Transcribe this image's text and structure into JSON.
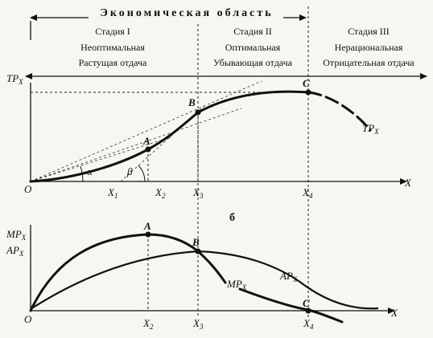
{
  "header": {
    "title": "Экономическая область"
  },
  "stages": [
    {
      "name": "Стадия I",
      "line1": "Неоптимальная",
      "line2": "Растущая отдача"
    },
    {
      "name": "Стадия II",
      "line1": "Оптимальная",
      "line2": "Убывающая отдача"
    },
    {
      "name": "Стадия III",
      "line1": "Нерациональная",
      "line2": "Отрицательная отдача"
    }
  ],
  "top_chart": {
    "y_axis": {
      "main": "TP",
      "sub": "X"
    },
    "x_axis": "X",
    "origin": "O",
    "curve_label": {
      "main": "TP",
      "sub": "X"
    },
    "points": [
      "A",
      "B",
      "C"
    ],
    "angles": [
      "α",
      "β"
    ],
    "x_ticks": [
      {
        "main": "X",
        "sub": "1"
      },
      {
        "main": "X",
        "sub": "2"
      },
      {
        "main": "X",
        "sub": "3"
      },
      {
        "main": "X",
        "sub": "4"
      }
    ]
  },
  "panel_label": "б",
  "bottom_chart": {
    "y_axis_lines": [
      {
        "main": "MP",
        "sub": "X"
      },
      {
        "main": "AP",
        "sub": "X"
      }
    ],
    "x_axis": "X",
    "origin": "O",
    "points": [
      "A",
      "B",
      "C"
    ],
    "mp_label": {
      "main": "MP",
      "sub": "X"
    },
    "ap_label": {
      "main": "AP",
      "sub": "X"
    },
    "x_ticks": [
      {
        "main": "X",
        "sub": "2"
      },
      {
        "main": "X",
        "sub": "3"
      },
      {
        "main": "X",
        "sub": "4"
      }
    ]
  }
}
